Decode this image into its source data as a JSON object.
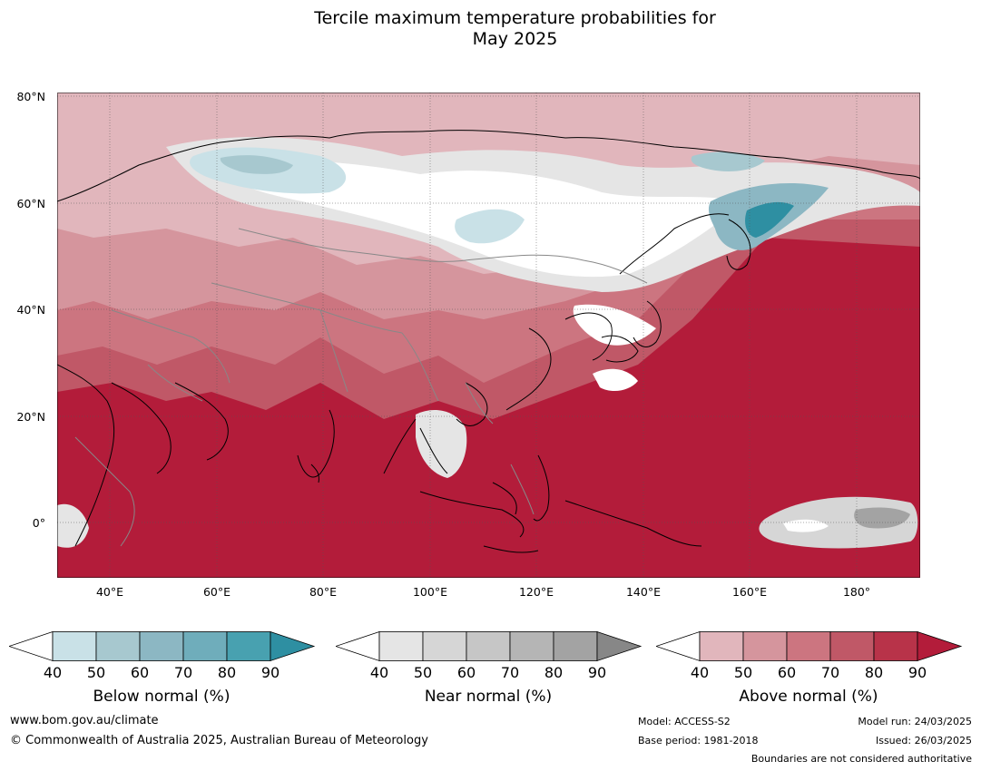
{
  "title": {
    "line1": "Tercile maximum temperature probabilities for",
    "line2": "May 2025"
  },
  "map": {
    "lat_labels": [
      "80°N",
      "60°N",
      "40°N",
      "20°N",
      "0°"
    ],
    "lon_labels": [
      "40°E",
      "60°E",
      "80°E",
      "100°E",
      "120°E",
      "140°E",
      "160°E",
      "180°"
    ]
  },
  "colorbars": [
    {
      "title": "Below normal (%)",
      "ticks": [
        "40",
        "50",
        "60",
        "70",
        "80",
        "90"
      ],
      "colors": [
        "#c9e1e7",
        "#a7c8cf",
        "#8cb7c3",
        "#6fadbb",
        "#48a1b0",
        "#2e8fa2"
      ]
    },
    {
      "title": "Near normal (%)",
      "ticks": [
        "40",
        "50",
        "60",
        "70",
        "80",
        "90"
      ],
      "colors": [
        "#e5e5e5",
        "#d6d6d6",
        "#c6c6c6",
        "#b5b5b5",
        "#a3a3a3",
        "#878787"
      ]
    },
    {
      "title": "Above normal (%)",
      "ticks": [
        "40",
        "50",
        "60",
        "70",
        "80",
        "90"
      ],
      "colors": [
        "#e1b6bc",
        "#d5959d",
        "#cc7580",
        "#c05867",
        "#b83349",
        "#b31c3a"
      ]
    }
  ],
  "footer": {
    "url": "www.bom.gov.au/climate",
    "copyright": "© Commonwealth of Australia 2025, Australian Bureau of Meteorology",
    "model": "Model: ACCESS-S2",
    "base_period": "Base period: 1981-2018",
    "model_run": "Model run: 24/03/2025",
    "issued": "Issued: 26/03/2025",
    "disclaimer": "Boundaries are not considered authoritative"
  }
}
